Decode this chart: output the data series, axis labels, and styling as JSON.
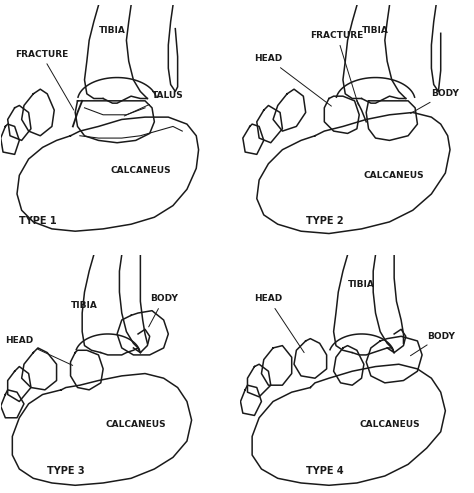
{
  "figure_width": 4.74,
  "figure_height": 4.93,
  "dpi": 100,
  "bg_color": "#ffffff",
  "border_color": "#000000",
  "line_color": "#1a1a1a",
  "line_width": 1.1,
  "font_size": 6.5,
  "panels": [
    "TYPE 1",
    "TYPE 2",
    "TYPE 3",
    "TYPE 4"
  ]
}
